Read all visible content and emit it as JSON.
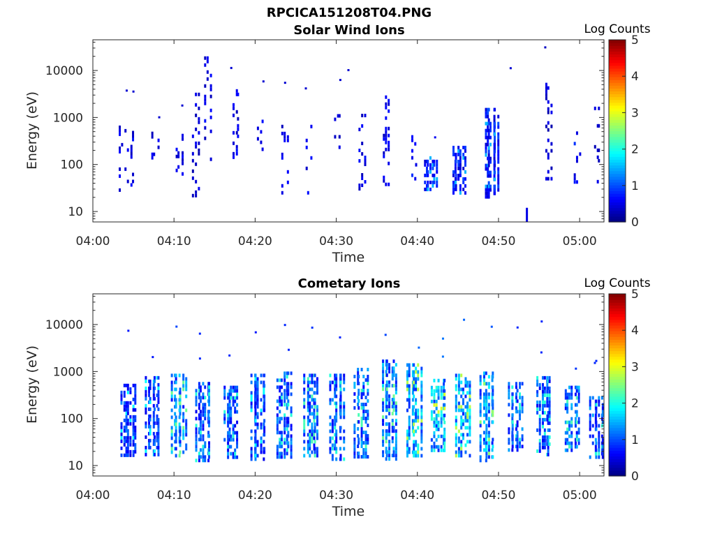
{
  "figure_title": "RPCICA151208T04.PNG",
  "chart_data": [
    {
      "type": "heatmap",
      "title": "Solar Wind Ions",
      "xlabel": "Time",
      "ylabel": "Energy (eV)",
      "y_scale": "log",
      "ylim": [
        6,
        45000
      ],
      "x_range": [
        "04:00",
        "05:03"
      ],
      "x_ticks": [
        "04:00",
        "04:10",
        "04:20",
        "04:30",
        "04:40",
        "04:50",
        "05:00"
      ],
      "y_ticks": [
        "10",
        "100",
        "1000",
        "10000"
      ],
      "colorbar": {
        "label": "Log Counts",
        "range": [
          0,
          5
        ],
        "ticks": [
          "0",
          "1",
          "2",
          "3",
          "4",
          "5"
        ],
        "colormap": "jet"
      },
      "time_columns": [
        {
          "t": "04:03.5",
          "e_min": 25,
          "e_max": 800,
          "level": 0.5,
          "style": "sparse"
        },
        {
          "t": "04:04.5",
          "e_min": 40,
          "e_max": 520,
          "level": 0.5,
          "style": "sparse"
        },
        {
          "t": "04:05",
          "e_min": 3500,
          "e_max": 3500,
          "level": 0.4,
          "style": "dot"
        },
        {
          "t": "04:07.5",
          "e_min": 120,
          "e_max": 500,
          "level": 0.5,
          "style": "sparse"
        },
        {
          "t": "04:10.5",
          "e_min": 60,
          "e_max": 450,
          "level": 0.5,
          "style": "sparse"
        },
        {
          "t": "04:12.5",
          "e_min": 18,
          "e_max": 4000,
          "level": 0.4,
          "style": "sparse"
        },
        {
          "t": "04:14",
          "e_min": 90,
          "e_max": 20000,
          "level": 0.5,
          "style": "sparse"
        },
        {
          "t": "04:17.5",
          "e_min": 150,
          "e_max": 4000,
          "level": 0.5,
          "style": "sparse"
        },
        {
          "t": "04:20.5",
          "e_min": 180,
          "e_max": 900,
          "level": 0.5,
          "style": "sparse"
        },
        {
          "t": "04:23.5",
          "e_min": 25,
          "e_max": 700,
          "level": 0.5,
          "style": "sparse"
        },
        {
          "t": "04:26.5",
          "e_min": 25,
          "e_max": 700,
          "level": 0.5,
          "style": "sparse"
        },
        {
          "t": "04:30",
          "e_min": 140,
          "e_max": 1400,
          "level": 0.5,
          "style": "sparse"
        },
        {
          "t": "04:31.5",
          "e_min": 10000,
          "e_max": 10000,
          "level": 0.4,
          "style": "dot"
        },
        {
          "t": "04:33",
          "e_min": 30,
          "e_max": 1200,
          "level": 0.5,
          "style": "sparse"
        },
        {
          "t": "04:36",
          "e_min": 30,
          "e_max": 3500,
          "level": 0.5,
          "style": "sparse"
        },
        {
          "t": "04:39.5",
          "e_min": 40,
          "e_max": 500,
          "level": 0.6,
          "style": "sparse"
        },
        {
          "t": "04:41.5",
          "e_min": 30,
          "e_max": 150,
          "level": 0.7,
          "style": "dense"
        },
        {
          "t": "04:45",
          "e_min": 25,
          "e_max": 250,
          "level": 0.7,
          "style": "dense"
        },
        {
          "t": "04:49",
          "e_min": 20,
          "e_max": 1600,
          "level": 0.7,
          "style": "dense"
        },
        {
          "t": "04:51.5",
          "e_min": 11000,
          "e_max": 11000,
          "level": 0.4,
          "style": "dot"
        },
        {
          "t": "04:53.5",
          "e_min": 6,
          "e_max": 12,
          "level": 0.5,
          "style": "block"
        },
        {
          "t": "04:56",
          "e_min": 40,
          "e_max": 6500,
          "level": 0.4,
          "style": "sparse"
        },
        {
          "t": "04:59.5",
          "e_min": 40,
          "e_max": 600,
          "level": 0.6,
          "style": "sparse"
        },
        {
          "t": "05:02",
          "e_min": 35,
          "e_max": 1700,
          "level": 0.4,
          "style": "sparse"
        }
      ]
    },
    {
      "type": "heatmap",
      "title": "Cometary Ions",
      "xlabel": "Time",
      "ylabel": "Energy (eV)",
      "y_scale": "log",
      "ylim": [
        6,
        45000
      ],
      "x_range": [
        "04:00",
        "05:03"
      ],
      "x_ticks": [
        "04:00",
        "04:10",
        "04:20",
        "04:30",
        "04:40",
        "04:50",
        "05:00"
      ],
      "y_ticks": [
        "10",
        "100",
        "1000",
        "10000"
      ],
      "colorbar": {
        "label": "Log Counts",
        "range": [
          0,
          5
        ],
        "ticks": [
          "0",
          "1",
          "2",
          "3",
          "4",
          "5"
        ],
        "colormap": "jet"
      },
      "time_columns": [
        {
          "t": "04:04.3",
          "e_min": 18,
          "e_max": 550,
          "level": 0.9,
          "style": "dense"
        },
        {
          "t": "04:07.3",
          "e_min": 18,
          "e_max": 800,
          "level": 0.9,
          "style": "dense"
        },
        {
          "t": "04:10.5",
          "e_min": 16,
          "e_max": 900,
          "level": 1.2,
          "style": "dense"
        },
        {
          "t": "04:13.5",
          "e_min": 13,
          "e_max": 600,
          "level": 1.0,
          "style": "dense"
        },
        {
          "t": "04:17",
          "e_min": 15,
          "e_max": 500,
          "level": 1.0,
          "style": "dense"
        },
        {
          "t": "04:20.3",
          "e_min": 14,
          "e_max": 900,
          "level": 0.9,
          "style": "dense"
        },
        {
          "t": "04:23.5",
          "e_min": 15,
          "e_max": 1000,
          "level": 1.0,
          "style": "dense"
        },
        {
          "t": "04:26.8",
          "e_min": 15,
          "e_max": 900,
          "level": 1.1,
          "style": "dense"
        },
        {
          "t": "04:30",
          "e_min": 14,
          "e_max": 900,
          "level": 1.0,
          "style": "dense"
        },
        {
          "t": "04:33",
          "e_min": 15,
          "e_max": 1200,
          "level": 1.1,
          "style": "dense"
        },
        {
          "t": "04:36.5",
          "e_min": 14,
          "e_max": 1800,
          "level": 1.2,
          "style": "dense"
        },
        {
          "t": "04:39.5",
          "e_min": 15,
          "e_max": 1500,
          "level": 1.4,
          "style": "dense"
        },
        {
          "t": "04:42.5",
          "e_min": 20,
          "e_max": 700,
          "level": 1.5,
          "style": "dense"
        },
        {
          "t": "04:45.5",
          "e_min": 15,
          "e_max": 900,
          "level": 1.4,
          "style": "dense"
        },
        {
          "t": "04:48.5",
          "e_min": 13,
          "e_max": 1000,
          "level": 1.3,
          "style": "dense"
        },
        {
          "t": "04:52",
          "e_min": 20,
          "e_max": 600,
          "level": 1.0,
          "style": "dense"
        },
        {
          "t": "04:55.5",
          "e_min": 18,
          "e_max": 800,
          "level": 1.0,
          "style": "dense"
        },
        {
          "t": "04:59",
          "e_min": 20,
          "e_max": 500,
          "level": 1.1,
          "style": "dense"
        },
        {
          "t": "05:02",
          "e_min": 15,
          "e_max": 300,
          "level": 1.0,
          "style": "dense"
        }
      ]
    }
  ]
}
